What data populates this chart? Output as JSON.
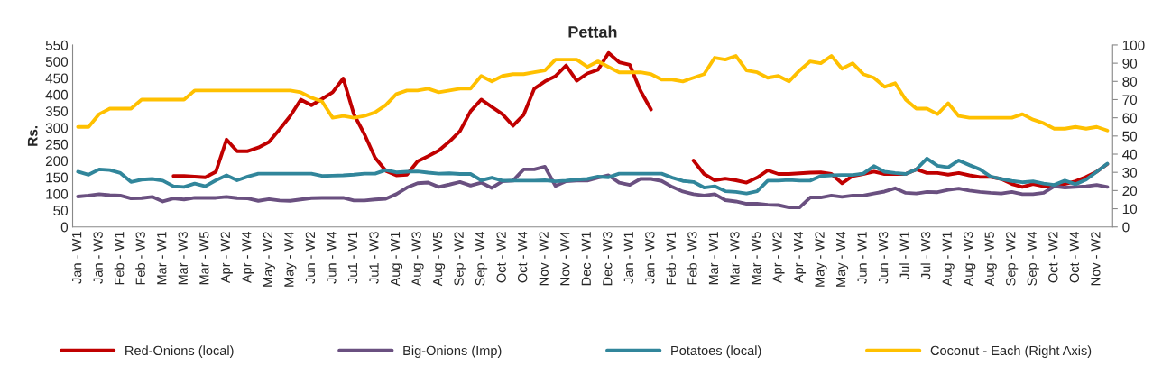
{
  "chart_data": {
    "type": "line",
    "title": "Pettah",
    "ylabel": "Rs.",
    "categories": [
      "Jan - W1",
      null,
      "Jan - W3",
      null,
      "Feb - W1",
      null,
      "Feb - W3",
      null,
      "Mar - W1",
      null,
      "Mar - W3",
      null,
      "Mar - W5",
      null,
      "Apr - W2",
      null,
      "Apr - W4",
      null,
      "May - W2",
      null,
      "May - W4",
      null,
      "Jun - W2",
      null,
      "Jun - W4",
      null,
      "Ju1 - W1",
      null,
      "Ju1 - W3",
      null,
      "Aug - W1",
      null,
      "Aug - W3",
      null,
      "Aug - W5",
      null,
      "Sep - W2",
      null,
      "Sep - W4",
      null,
      "Oct - W2",
      null,
      "Oct - W4",
      null,
      "Nov - W2",
      null,
      "Nov - W4",
      null,
      "Dec - W1",
      null,
      "Dec - W3",
      null,
      "Jan - W1",
      null,
      "Jan - W3",
      null,
      "Feb - W1",
      null,
      "Feb - W3",
      null,
      "Mar - W1",
      null,
      "Mar - W3",
      null,
      "Mar - W5",
      null,
      "Apr - W2",
      null,
      "Apr - W4",
      null,
      "May - W2",
      null,
      "May - W4",
      null,
      "Jun - W1",
      null,
      "Jun - W3",
      null,
      "Jul - W1",
      null,
      "Jul - W3",
      null,
      "Aug - W1",
      null,
      "Aug - W3",
      null,
      "Aug - W5",
      null,
      "Sep - W2",
      null,
      "Sep - W4",
      null,
      "Oct - W2",
      null,
      "Oct - W4",
      null,
      "Nov - W2",
      null
    ],
    "series": [
      {
        "name": "Red-Onions (local)",
        "color": "#c00000",
        "values": [
          null,
          null,
          null,
          null,
          null,
          null,
          null,
          null,
          null,
          154,
          154,
          152,
          150,
          167,
          264,
          229,
          229,
          240,
          257,
          295,
          335,
          385,
          368,
          387,
          407,
          449,
          341,
          280,
          209,
          170,
          156,
          158,
          198,
          214,
          231,
          258,
          290,
          350,
          385,
          363,
          341,
          306,
          339,
          418,
          440,
          456,
          488,
          442,
          464,
          475,
          526,
          498,
          490,
          412,
          355,
          null,
          null,
          null,
          201,
          160,
          141,
          146,
          141,
          134,
          149,
          171,
          160,
          160,
          162,
          164,
          165,
          160,
          132,
          154,
          160,
          167,
          160,
          160,
          160,
          174,
          163,
          163,
          158,
          163,
          156,
          151,
          151,
          145,
          130,
          121,
          130,
          123,
          123,
          130,
          138,
          151,
          167,
          190
        ]
      },
      {
        "name": "Big-Onions (Imp)",
        "color": "#6a5080",
        "values": [
          92,
          95,
          99,
          96,
          95,
          86,
          87,
          91,
          77,
          86,
          83,
          88,
          88,
          88,
          91,
          87,
          86,
          79,
          84,
          80,
          79,
          83,
          87,
          88,
          88,
          88,
          80,
          80,
          83,
          85,
          99,
          119,
          132,
          134,
          121,
          128,
          136,
          125,
          134,
          118,
          138,
          140,
          174,
          174,
          182,
          124,
          138,
          140,
          140,
          149,
          156,
          134,
          127,
          145,
          145,
          139,
          121,
          107,
          99,
          95,
          99,
          81,
          77,
          70,
          70,
          67,
          66,
          59,
          59,
          89,
          89,
          95,
          91,
          95,
          95,
          101,
          107,
          117,
          103,
          101,
          106,
          105,
          112,
          116,
          110,
          106,
          103,
          101,
          106,
          99,
          99,
          103,
          123,
          119,
          121,
          123,
          127,
          121
        ]
      },
      {
        "name": "Potatoes (local)",
        "color": "#31869b",
        "values": [
          167,
          158,
          174,
          172,
          163,
          136,
          143,
          145,
          140,
          123,
          121,
          131,
          123,
          141,
          156,
          141,
          152,
          161,
          161,
          161,
          161,
          161,
          161,
          154,
          155,
          156,
          158,
          161,
          161,
          172,
          165,
          167,
          168,
          164,
          161,
          162,
          160,
          160,
          141,
          149,
          140,
          140,
          140,
          140,
          141,
          138,
          140,
          143,
          145,
          152,
          150,
          161,
          161,
          161,
          161,
          161,
          149,
          139,
          136,
          119,
          123,
          108,
          106,
          101,
          108,
          140,
          140,
          142,
          140,
          140,
          154,
          156,
          157,
          157,
          161,
          184,
          167,
          163,
          160,
          174,
          207,
          185,
          180,
          201,
          187,
          174,
          152,
          145,
          139,
          135,
          138,
          131,
          127,
          140,
          129,
          143,
          167,
          191
        ]
      },
      {
        "name": "Coconut - Each (Right Axis)",
        "color": "#ffc000",
        "axis": "y2",
        "values": [
          55,
          55,
          62,
          65,
          65,
          65,
          70,
          70,
          70,
          70,
          70,
          75,
          75,
          75,
          75,
          75,
          75,
          75,
          75,
          75,
          75,
          74,
          71,
          69,
          60,
          61,
          60,
          61,
          63,
          67,
          73,
          75,
          75,
          76,
          74,
          75,
          76,
          76,
          83,
          80,
          83,
          84,
          84,
          85,
          86,
          92,
          92,
          92,
          88,
          91,
          88,
          85,
          85,
          85,
          84,
          81,
          81,
          80,
          82,
          84,
          93,
          92,
          94,
          86,
          85,
          82,
          83,
          80,
          86,
          91,
          90,
          94,
          87,
          90,
          84,
          82,
          77,
          79,
          70,
          65,
          65,
          62,
          68,
          61,
          60,
          60,
          60,
          60,
          60,
          62,
          59,
          57,
          54,
          54,
          55,
          54,
          55,
          53
        ]
      }
    ],
    "ylim": [
      0,
      550
    ],
    "yticks": [
      0,
      50,
      100,
      150,
      200,
      250,
      300,
      350,
      400,
      450,
      500,
      550
    ],
    "y2lim": [
      0,
      100
    ],
    "y2ticks": [
      0,
      10,
      20,
      30,
      40,
      50,
      60,
      70,
      80,
      90,
      100
    ],
    "grid": false,
    "legend": "bottom",
    "marker": "none",
    "line_style": "solid"
  }
}
